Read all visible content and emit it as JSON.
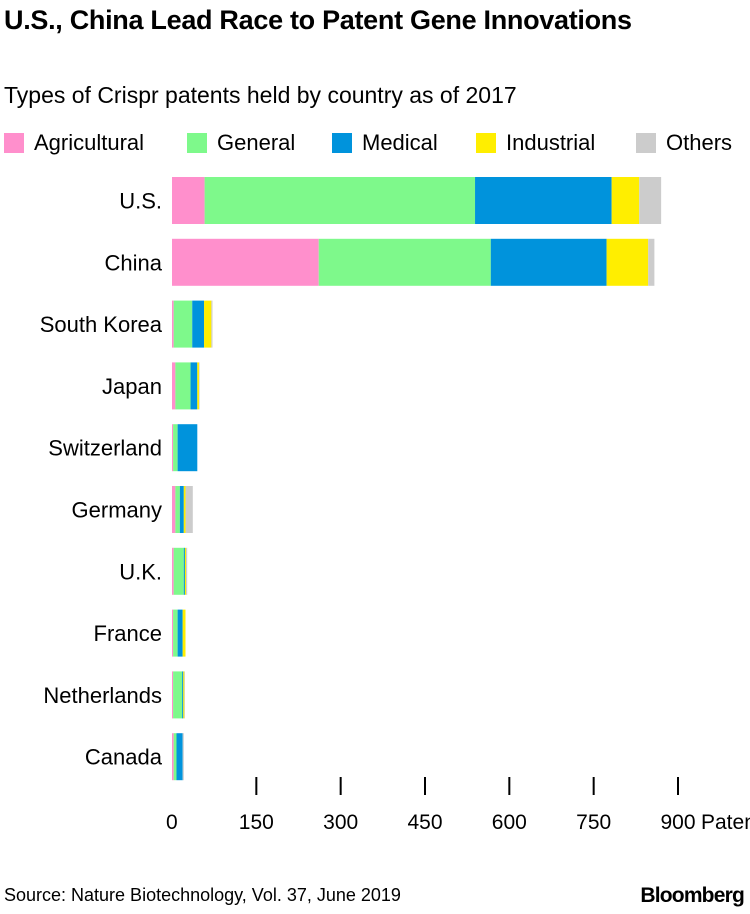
{
  "chart_data": {
    "type": "bar",
    "orientation": "horizontal",
    "stacked": true,
    "title": "U.S., China Lead Race to Patent Gene Innovations",
    "subtitle": "Types of Crispr patents held by country as of 2017",
    "categories": [
      "U.S.",
      "China",
      "South Korea",
      "Japan",
      "Switzerland",
      "Germany",
      "U.K.",
      "France",
      "Netherlands",
      "Canada"
    ],
    "series": [
      {
        "name": "Agricultural",
        "color": "#ff8fcc",
        "values": [
          58,
          261,
          3,
          6,
          2,
          6,
          3,
          2,
          2,
          3
        ]
      },
      {
        "name": "General",
        "color": "#7ef98b",
        "values": [
          481,
          306,
          33,
          27,
          8,
          8,
          18,
          8,
          16,
          5
        ]
      },
      {
        "name": "Medical",
        "color": "#0093dc",
        "values": [
          243,
          206,
          21,
          12,
          35,
          7,
          2,
          9,
          2,
          11
        ]
      },
      {
        "name": "Industrial",
        "color": "#ffee00",
        "values": [
          49,
          74,
          13,
          3,
          0,
          3,
          2,
          5,
          2,
          0
        ]
      },
      {
        "name": "Others",
        "color": "#cccccc",
        "values": [
          39,
          11,
          2,
          1,
          0,
          13,
          2,
          0,
          1,
          2
        ]
      }
    ],
    "xlim": [
      0,
      900
    ],
    "x_ticks": [
      "0",
      "150",
      "300",
      "450",
      "600",
      "750",
      "900"
    ],
    "x_unit": "Patents",
    "grid": false,
    "legend_position": "top"
  },
  "source": "Source: Nature Biotechnology, Vol. 37, June 2019",
  "brand": "Bloomberg"
}
